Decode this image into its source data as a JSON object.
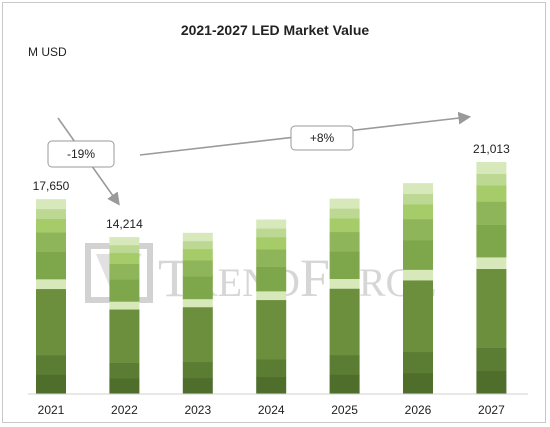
{
  "chart_data": {
    "type": "bar",
    "title": "2021-2027 LED Market Value",
    "ylabel": "M USD",
    "categories": [
      "2021",
      "2022",
      "2023",
      "2024",
      "2025",
      "2026",
      "2027"
    ],
    "values": [
      17650,
      14214,
      14600,
      15800,
      17700,
      19100,
      21013
    ],
    "data_labels": {
      "2021": "17,650",
      "2022": "14,214",
      "2027": "21,013"
    },
    "ylim": [
      0,
      24000
    ],
    "grid": false,
    "annotations": [
      {
        "text": "-19%",
        "from": "2021",
        "to": "2022"
      },
      {
        "text": "+8%",
        "from": "2022",
        "to": "2027"
      }
    ],
    "colors": {
      "bar_dark": "#5a7d33",
      "bar_mid": "#7ea64a",
      "bar_light": "#a6cc6a",
      "bar_pale": "#d7e9bb",
      "arrow": "#9a9a9a",
      "watermark": "#b5b5b5"
    }
  },
  "watermark": "TRENDFORCE"
}
